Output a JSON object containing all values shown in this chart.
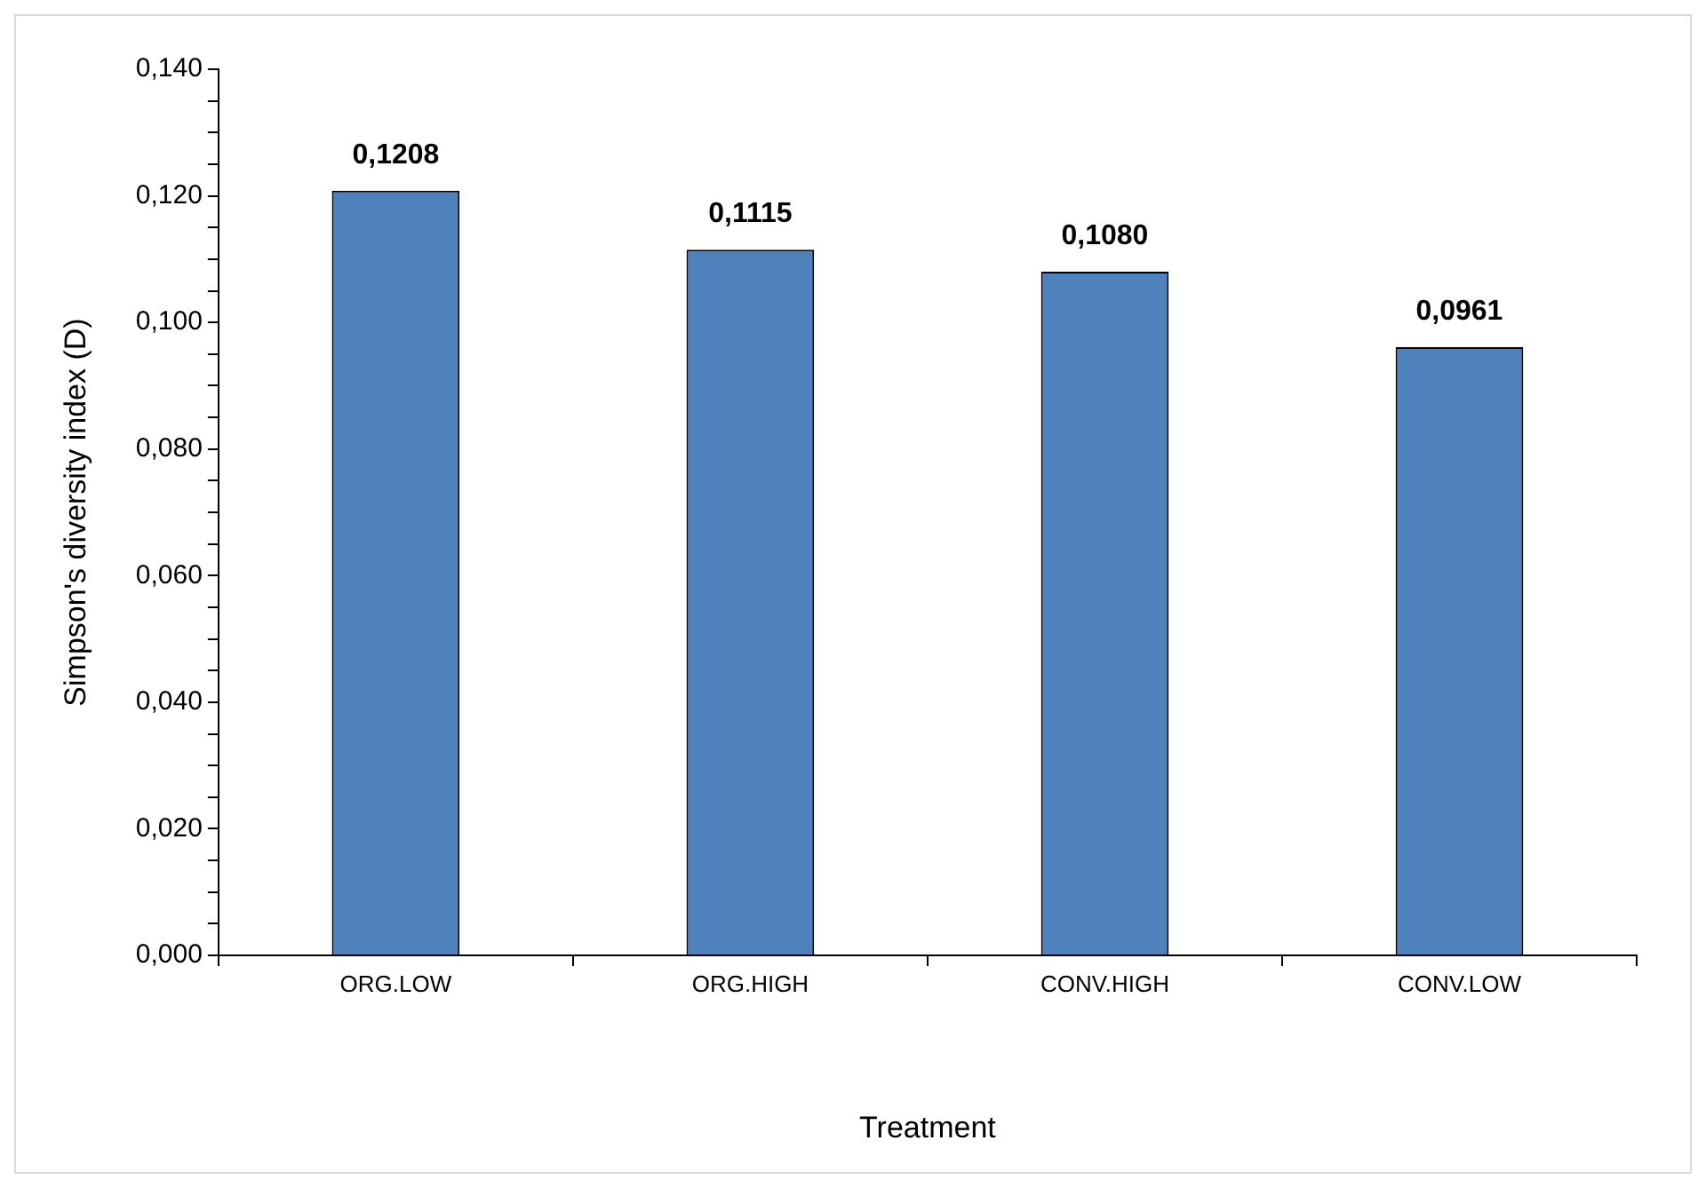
{
  "chart_data": {
    "type": "bar",
    "xlabel": "Treatment",
    "ylabel": "Simpson's diversity index (D)",
    "categories": [
      "ORG.LOW",
      "ORG.HIGH",
      "CONV.HIGH",
      "CONV.LOW"
    ],
    "values": [
      0.1208,
      0.1115,
      0.108,
      0.0961
    ],
    "value_labels": [
      "0,1208",
      "0,1115",
      "0,1080",
      "0,0961"
    ],
    "color": "#4f81bd",
    "ylim": [
      0,
      0.14
    ],
    "yticks": [
      {
        "value": 0,
        "label": "0,000"
      },
      {
        "value": 0.005,
        "label": null
      },
      {
        "value": 0.01,
        "label": null
      },
      {
        "value": 0.015,
        "label": null
      },
      {
        "value": 0.02,
        "label": "0,020"
      },
      {
        "value": 0.025,
        "label": null
      },
      {
        "value": 0.03,
        "label": null
      },
      {
        "value": 0.035,
        "label": null
      },
      {
        "value": 0.04,
        "label": "0,040"
      },
      {
        "value": 0.045,
        "label": null
      },
      {
        "value": 0.05,
        "label": null
      },
      {
        "value": 0.055,
        "label": null
      },
      {
        "value": 0.06,
        "label": "0,060"
      },
      {
        "value": 0.065,
        "label": null
      },
      {
        "value": 0.07,
        "label": null
      },
      {
        "value": 0.075,
        "label": null
      },
      {
        "value": 0.08,
        "label": "0,080"
      },
      {
        "value": 0.085,
        "label": null
      },
      {
        "value": 0.09,
        "label": null
      },
      {
        "value": 0.095,
        "label": null
      },
      {
        "value": 0.1,
        "label": "0,100"
      },
      {
        "value": 0.105,
        "label": null
      },
      {
        "value": 0.11,
        "label": null
      },
      {
        "value": 0.115,
        "label": null
      },
      {
        "value": 0.12,
        "label": "0,120"
      },
      {
        "value": 0.125,
        "label": null
      },
      {
        "value": 0.13,
        "label": null
      },
      {
        "value": 0.135,
        "label": null
      },
      {
        "value": 0.14,
        "label": "0,140"
      }
    ],
    "grid": false,
    "legend": false
  }
}
